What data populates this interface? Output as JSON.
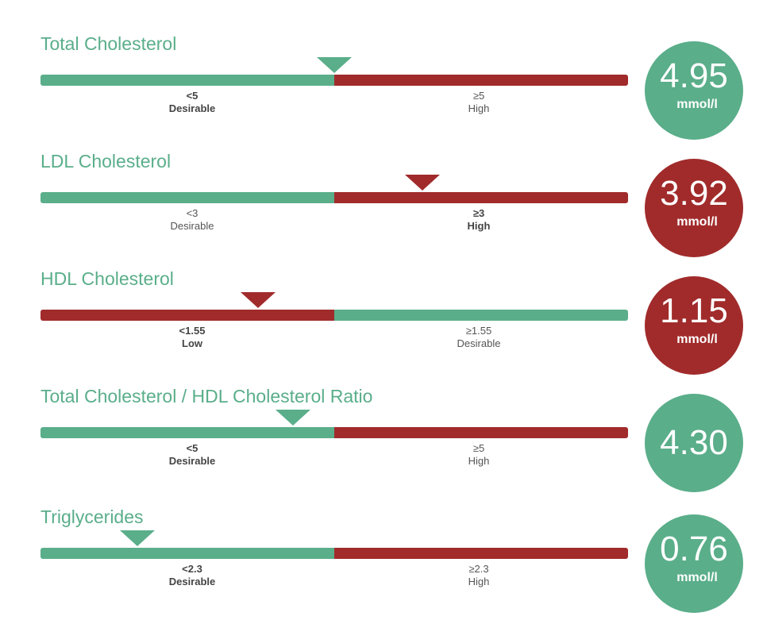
{
  "colors": {
    "green": "#5aae8a",
    "red": "#a12b2b"
  },
  "chart_data": {
    "type": "gauge",
    "items": [
      {
        "title": "Total Cholesterol",
        "value": 4.95,
        "value_text": "4.95",
        "unit": "mmol/l",
        "status": "green",
        "pointer": 0.5,
        "segments": [
          {
            "threshold": "<5",
            "label": "Desirable",
            "color": "green",
            "active": true
          },
          {
            "threshold": "≥5",
            "label": "High",
            "color": "red",
            "active": false
          }
        ]
      },
      {
        "title": "LDL Cholesterol",
        "value": 3.92,
        "value_text": "3.92",
        "unit": "mmol/l",
        "status": "red",
        "pointer": 0.65,
        "segments": [
          {
            "threshold": "<3",
            "label": "Desirable",
            "color": "green",
            "active": false
          },
          {
            "threshold": "≥3",
            "label": "High",
            "color": "red",
            "active": true
          }
        ]
      },
      {
        "title": "HDL Cholesterol",
        "value": 1.15,
        "value_text": "1.15",
        "unit": "mmol/l",
        "status": "red",
        "pointer": 0.37,
        "segments": [
          {
            "threshold": "<1.55",
            "label": "Low",
            "color": "red",
            "active": true
          },
          {
            "threshold": "≥1.55",
            "label": "Desirable",
            "color": "green",
            "active": false
          }
        ]
      },
      {
        "title": "Total Cholesterol / HDL Cholesterol Ratio",
        "value": 4.3,
        "value_text": "4.30",
        "unit": "",
        "status": "green",
        "pointer": 0.43,
        "segments": [
          {
            "threshold": "<5",
            "label": "Desirable",
            "color": "green",
            "active": true
          },
          {
            "threshold": "≥5",
            "label": "High",
            "color": "red",
            "active": false
          }
        ]
      },
      {
        "title": "Triglycerides",
        "value": 0.76,
        "value_text": "0.76",
        "unit": "mmol/l",
        "status": "green",
        "pointer": 0.165,
        "segments": [
          {
            "threshold": "<2.3",
            "label": "Desirable",
            "color": "green",
            "active": true
          },
          {
            "threshold": "≥2.3",
            "label": "High",
            "color": "red",
            "active": false
          }
        ]
      }
    ]
  }
}
